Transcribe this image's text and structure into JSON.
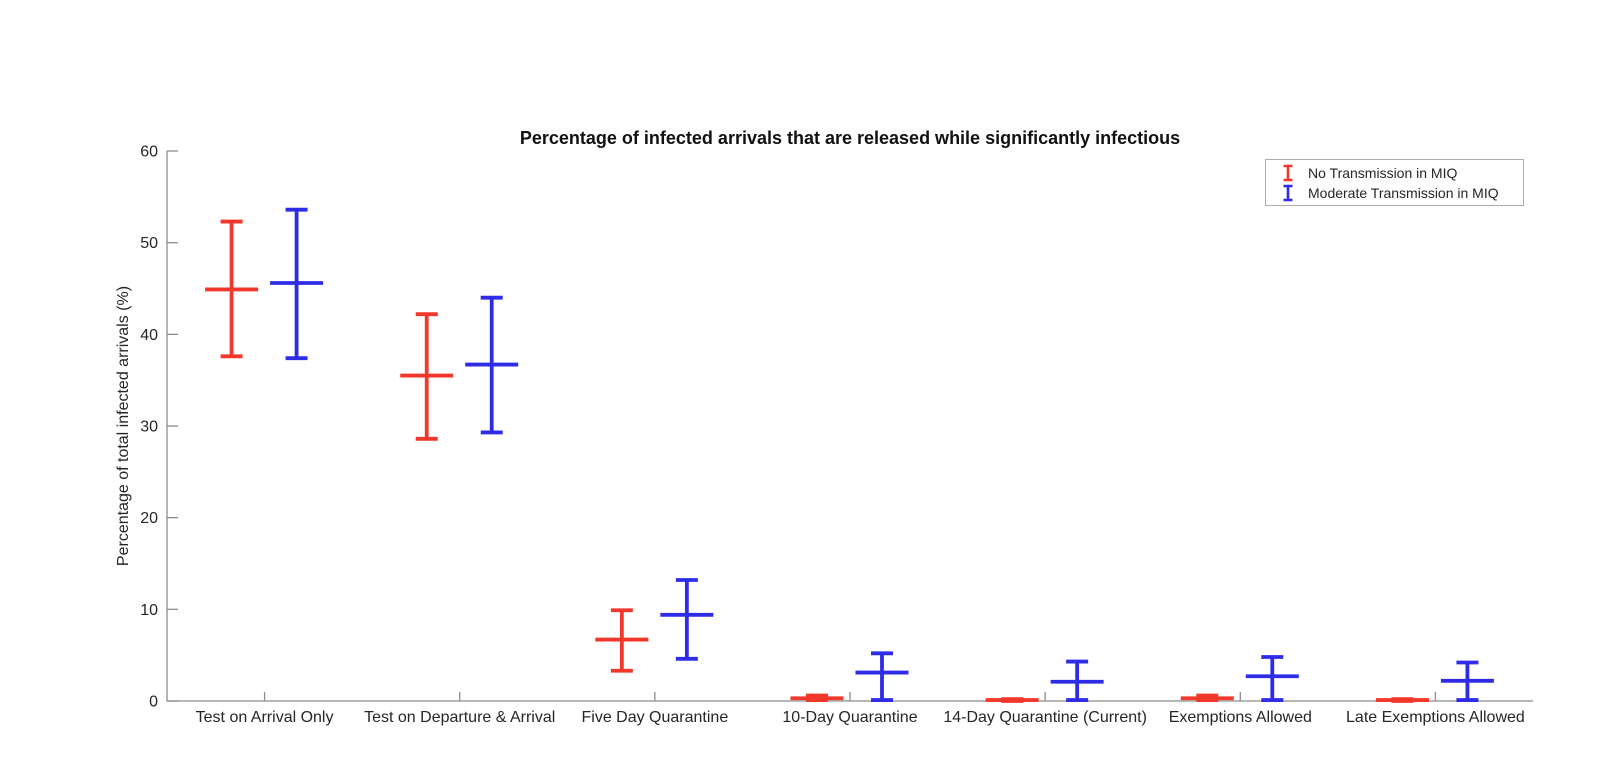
{
  "window": {
    "background": "#ffffff"
  },
  "chart_data": {
    "type": "errorbar",
    "title": "Percentage of infected arrivals that are released while significantly infectious",
    "xlabel": "",
    "ylabel": "Percentage of total infected arrivals (%)",
    "ylim": [
      0,
      60
    ],
    "yticks": [
      0,
      10,
      20,
      30,
      40,
      50,
      60
    ],
    "grid": false,
    "legend_position": "top-right",
    "categories": [
      "Test on Arrival Only",
      "Test on Departure & Arrival",
      "Five Day Quarantine",
      "10-Day Quarantine",
      "14-Day Quarantine (Current)",
      "Exemptions Allowed",
      "Late Exemptions Allowed"
    ],
    "series": [
      {
        "name": "No Transmission in MIQ",
        "color": "#f2382b",
        "mid": [
          44.9,
          35.5,
          6.7,
          0.3,
          0.1,
          0.3,
          0.1
        ],
        "lo": [
          37.6,
          28.6,
          3.3,
          0.1,
          0.0,
          0.1,
          0.0
        ],
        "hi": [
          52.3,
          42.2,
          9.9,
          0.6,
          0.2,
          0.6,
          0.2
        ]
      },
      {
        "name": "Moderate Transmission in MIQ",
        "color": "#2f2ce8",
        "mid": [
          45.6,
          36.7,
          9.4,
          3.1,
          2.1,
          2.7,
          2.2
        ],
        "lo": [
          37.4,
          29.3,
          4.6,
          0.1,
          0.1,
          0.1,
          0.1
        ],
        "hi": [
          53.6,
          44.0,
          13.2,
          5.2,
          4.3,
          4.8,
          4.2
        ]
      }
    ]
  }
}
